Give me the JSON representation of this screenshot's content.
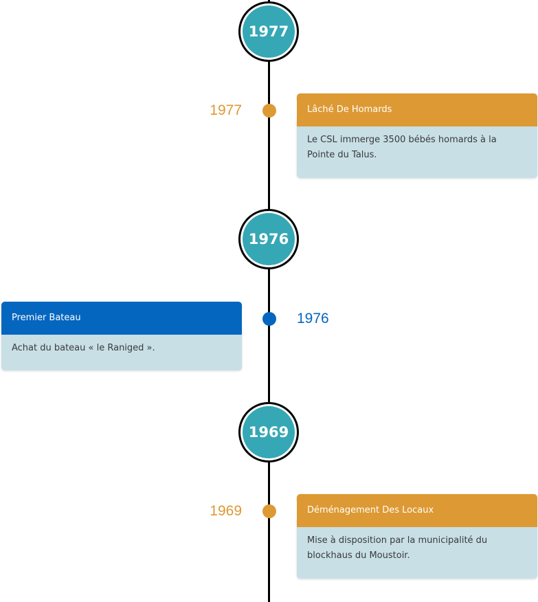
{
  "colors": {
    "accent_orange": "#dd9933",
    "accent_blue": "#0566bf",
    "year_circle": "#36a7b5",
    "card_body": "#c8dfe6"
  },
  "timeline": [
    {
      "year_marker": "1977",
      "event": {
        "date": "1977",
        "title": "Lâché De Homards",
        "text": "Le CSL immerge 3500 bébés homards à la Pointe du Talus.",
        "side": "right",
        "color": "#dd9933"
      }
    },
    {
      "year_marker": "1976",
      "event": {
        "date": "1976",
        "title": "Premier Bateau",
        "text": "Achat du bateau « le Raniged ».",
        "side": "left",
        "color": "#0566bf"
      }
    },
    {
      "year_marker": "1969",
      "event": {
        "date": "1969",
        "title": "Déménagement Des Locaux",
        "text": "Mise à disposition par la municipalité du blockhaus du Moustoir.",
        "side": "right",
        "color": "#dd9933"
      }
    }
  ]
}
